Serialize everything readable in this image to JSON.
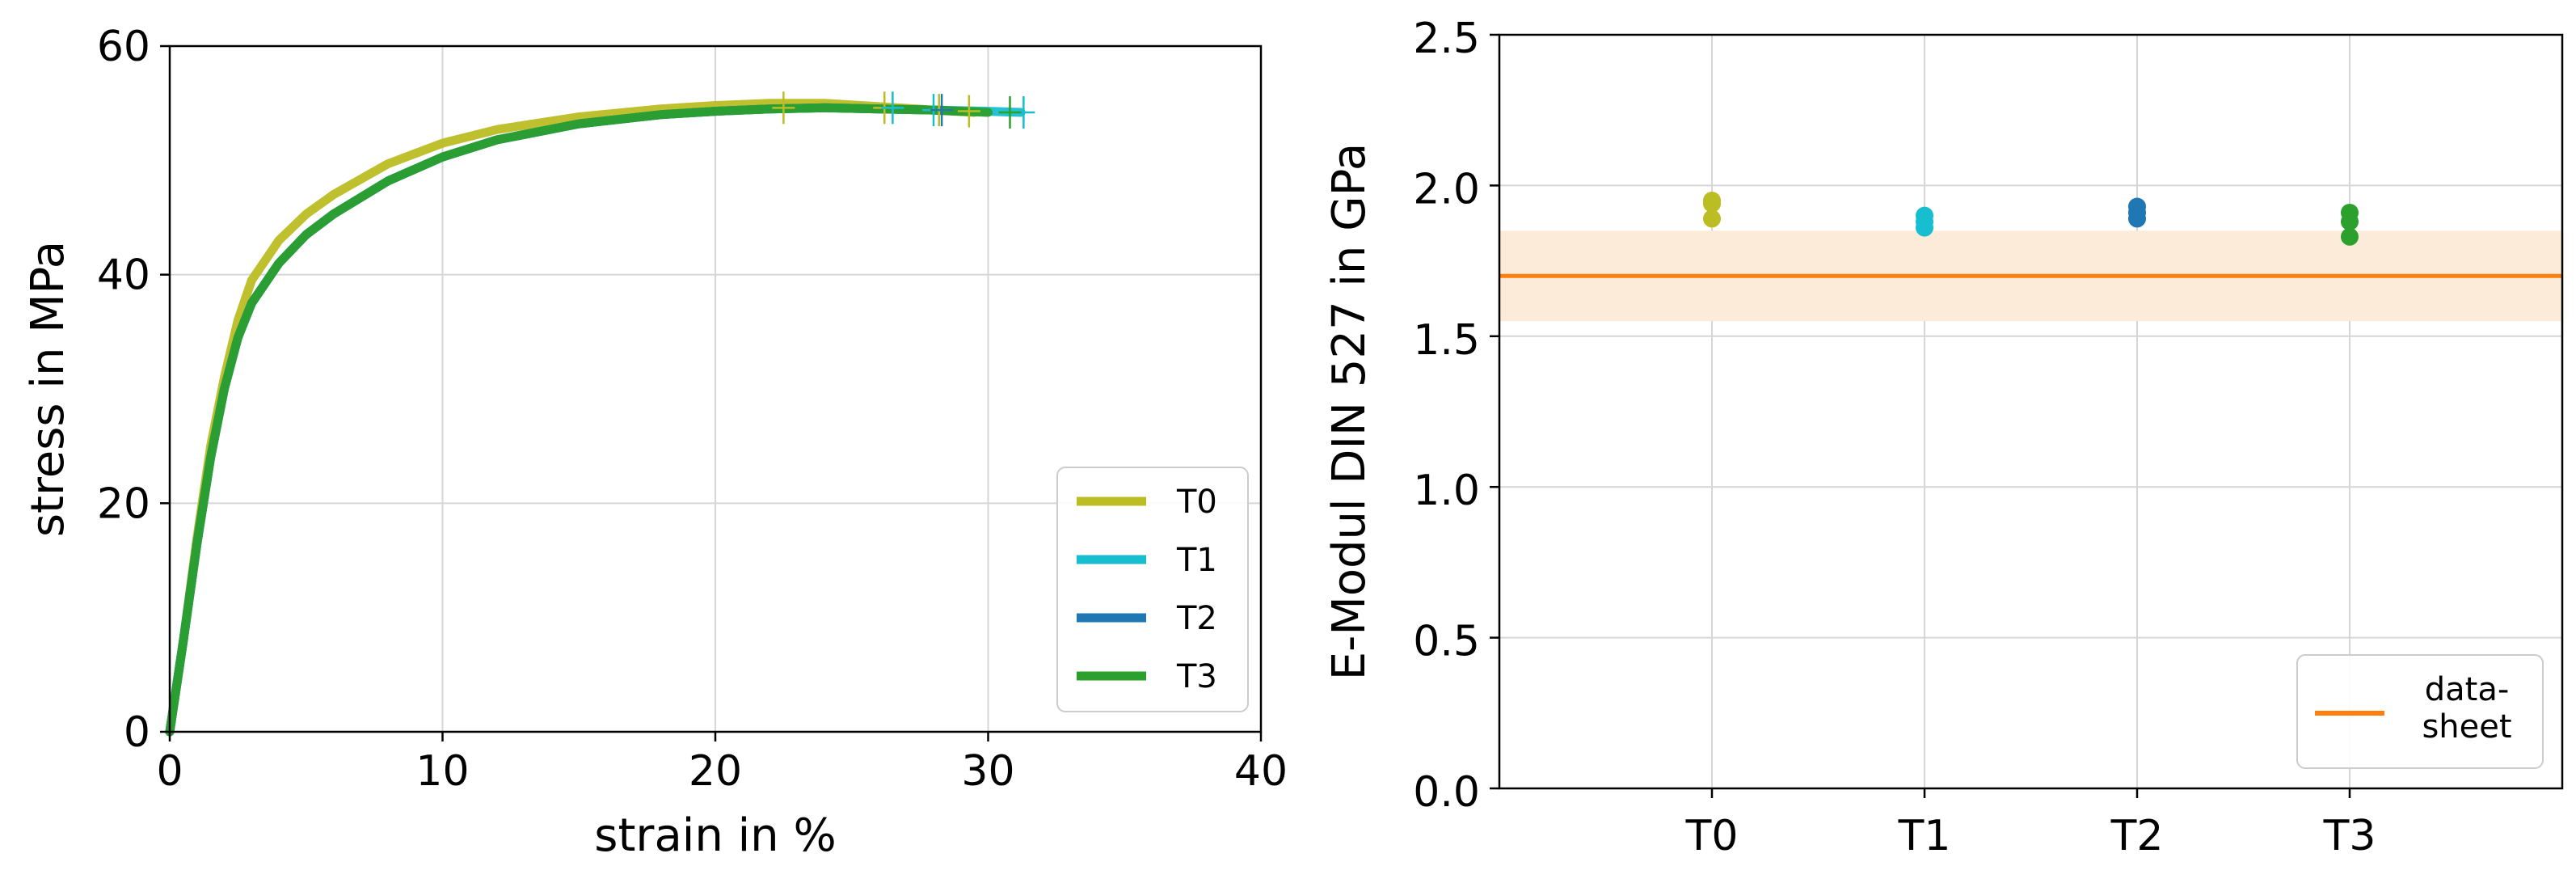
{
  "chart_data": [
    {
      "type": "line",
      "title": "",
      "xlabel": "strain in %",
      "ylabel": "stress in MPa",
      "xlim": [
        0,
        40
      ],
      "ylim": [
        0,
        60
      ],
      "xticks": [
        "0",
        "10",
        "20",
        "30",
        "40"
      ],
      "yticks": [
        "0",
        "20",
        "40",
        "60"
      ],
      "grid": true,
      "legend_position": "lower-right",
      "series": [
        {
          "name": "T0",
          "color": "#bcbd22",
          "x": [
            0,
            0.5,
            1,
            1.5,
            2,
            2.5,
            3,
            4,
            5,
            6,
            8,
            10,
            12,
            15,
            18,
            20,
            22,
            24,
            26,
            28,
            29.5
          ],
          "y": [
            0,
            8,
            17,
            25,
            31,
            36,
            39.5,
            43,
            45.3,
            47,
            49.7,
            51.5,
            52.7,
            53.8,
            54.5,
            54.8,
            55,
            55,
            54.7,
            54.4,
            54.2
          ]
        },
        {
          "name": "T1",
          "color": "#17becf",
          "x": [
            0,
            0.5,
            1,
            1.5,
            2,
            2.5,
            3,
            4,
            5,
            6,
            8,
            10,
            12,
            15,
            18,
            20,
            22,
            24,
            26,
            28,
            30,
            31.2
          ],
          "y": [
            0,
            8,
            16.5,
            24,
            30,
            34.5,
            37.5,
            41,
            43.5,
            45.3,
            48.2,
            50.3,
            51.8,
            53.2,
            54,
            54.3,
            54.5,
            54.6,
            54.5,
            54.4,
            54.3,
            54.2
          ]
        },
        {
          "name": "T2",
          "color": "#1f77b4",
          "x": [
            0,
            0.5,
            1,
            1.5,
            2,
            2.5,
            3,
            4,
            5,
            6,
            8,
            10,
            12,
            15,
            18,
            20,
            22,
            24,
            26,
            28,
            29
          ],
          "y": [
            0,
            8,
            16.5,
            24,
            30,
            34.5,
            37.5,
            41,
            43.5,
            45.3,
            48.2,
            50.3,
            51.8,
            53.2,
            54,
            54.3,
            54.5,
            54.6,
            54.5,
            54.4,
            54.3
          ]
        },
        {
          "name": "T3",
          "color": "#2ca02c",
          "x": [
            0,
            0.5,
            1,
            1.5,
            2,
            2.5,
            3,
            4,
            5,
            6,
            8,
            10,
            12,
            15,
            18,
            20,
            22,
            24,
            26,
            28,
            30
          ],
          "y": [
            0,
            8,
            16.5,
            24,
            30,
            34.5,
            37.5,
            41,
            43.5,
            45.3,
            48.2,
            50.3,
            51.8,
            53.2,
            54,
            54.3,
            54.5,
            54.6,
            54.5,
            54.4,
            54.2
          ]
        }
      ],
      "fracture_markers": [
        {
          "x": 22.5,
          "y": 54.6,
          "color": "#bcbd22"
        },
        {
          "x": 26.2,
          "y": 54.6,
          "color": "#bcbd22"
        },
        {
          "x": 28.2,
          "y": 54.4,
          "color": "#bcbd22"
        },
        {
          "x": 29.3,
          "y": 54.3,
          "color": "#bcbd22"
        },
        {
          "x": 26.5,
          "y": 54.6,
          "color": "#17becf"
        },
        {
          "x": 28,
          "y": 54.4,
          "color": "#17becf"
        },
        {
          "x": 31.3,
          "y": 54.2,
          "color": "#17becf"
        },
        {
          "x": 28.3,
          "y": 54.4,
          "color": "#1f77b4"
        },
        {
          "x": 30.8,
          "y": 54.2,
          "color": "#2ca02c"
        }
      ]
    },
    {
      "type": "scatter",
      "title": "",
      "xlabel": "",
      "ylabel": "E-Modul DIN 527 in GPa",
      "categories": [
        "T0",
        "T1",
        "T2",
        "T3"
      ],
      "ylim": [
        0,
        2.5
      ],
      "yticks": [
        "0.0",
        "0.5",
        "1.0",
        "1.5",
        "2.0",
        "2.5"
      ],
      "grid": true,
      "legend_position": "lower-right",
      "series": [
        {
          "category": "T0",
          "color": "#bcbd22",
          "values": [
            1.95,
            1.94,
            1.89
          ]
        },
        {
          "category": "T1",
          "color": "#17becf",
          "values": [
            1.9,
            1.88,
            1.86
          ]
        },
        {
          "category": "T2",
          "color": "#1f77b4",
          "values": [
            1.93,
            1.91,
            1.89
          ]
        },
        {
          "category": "T3",
          "color": "#2ca02c",
          "values": [
            1.91,
            1.88,
            1.83
          ]
        }
      ],
      "reference_line": {
        "name": "data-\nsheet",
        "value": 1.7,
        "band": [
          1.55,
          1.85
        ],
        "color": "#ff7f0e",
        "band_color": "#fdebd9"
      }
    }
  ]
}
